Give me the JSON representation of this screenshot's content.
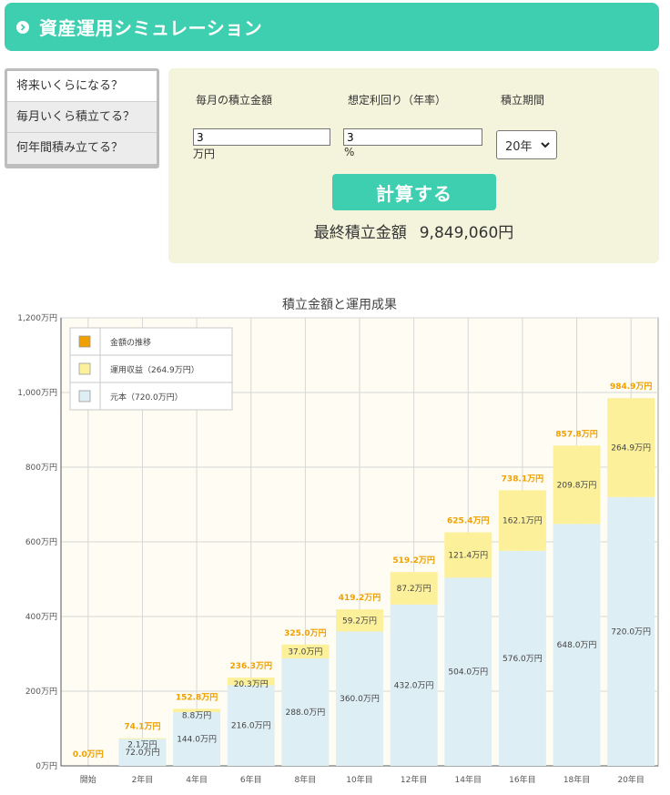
{
  "header": {
    "title": "資産運用シミュレーション",
    "icon": "chevron-right-icon"
  },
  "tabs": [
    {
      "label": "将来いくらになる？",
      "active": true
    },
    {
      "label": "毎月いくら積立てる？",
      "active": false
    },
    {
      "label": "何年間積み立てる？",
      "active": false
    }
  ],
  "form": {
    "monthly": {
      "label": "毎月の積立金額",
      "value": "3",
      "unit": "万円"
    },
    "rate": {
      "label": "想定利回り（年率）",
      "value": "3",
      "unit": "%"
    },
    "period": {
      "label": "積立期間",
      "selected": "20年"
    },
    "button": "計算する",
    "result_label": "最終積立金額",
    "result_value": "9,849,060円"
  },
  "colors": {
    "accent": "#3ecfb0",
    "panel": "#f4f4dc",
    "principal": "#ddeef5",
    "profit": "#fdf09a",
    "total": "#f0a000"
  },
  "chart_data": {
    "type": "bar",
    "stacked": true,
    "title": "積立金額と運用成果",
    "categories": [
      "開始",
      "2年目",
      "4年目",
      "6年目",
      "8年目",
      "10年目",
      "12年目",
      "14年目",
      "16年目",
      "18年目",
      "20年目"
    ],
    "series": [
      {
        "name": "元本（720.0万円）",
        "values": [
          0,
          72.0,
          144.0,
          216.0,
          288.0,
          360.0,
          432.0,
          504.0,
          576.0,
          648.0,
          720.0
        ]
      },
      {
        "name": "運用収益（264.9万円）",
        "values": [
          0,
          2.1,
          8.8,
          20.3,
          37.0,
          59.2,
          87.2,
          121.4,
          162.1,
          209.8,
          264.9
        ]
      }
    ],
    "totals": [
      0.0,
      74.1,
      152.8,
      236.3,
      325.0,
      419.2,
      519.2,
      625.4,
      738.1,
      857.8,
      984.9
    ],
    "total_legend": "金額の推移",
    "unit": "万円",
    "yticks": [
      "0万円",
      "200万円",
      "400万円",
      "600万円",
      "800万円",
      "1,000万円",
      "1,200万円"
    ],
    "ylim": [
      0,
      1200
    ],
    "grid": true,
    "legend_position": "top-left"
  }
}
